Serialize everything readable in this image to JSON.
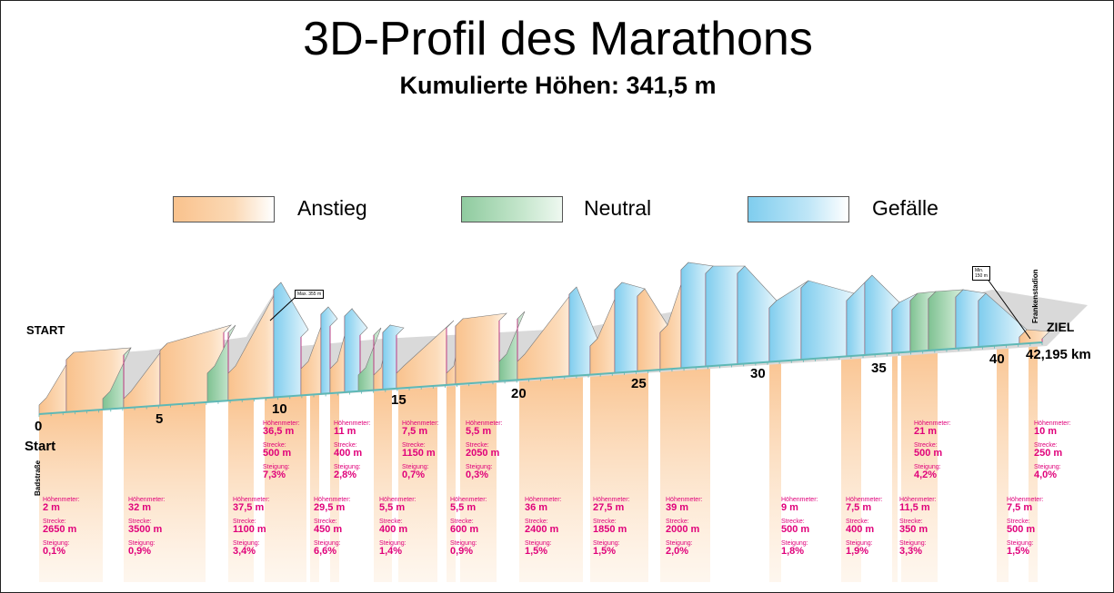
{
  "title": "3D-Profil des Marathons",
  "subtitle": "Kumulierte Höhen: 341,5 m",
  "legend": [
    {
      "label": "Anstieg",
      "color": "#f9c28d"
    },
    {
      "label": "Neutral",
      "color": "#8fcb9f"
    },
    {
      "label": "Gefälle",
      "color": "#7fcdee"
    }
  ],
  "labels": {
    "start_side": "START",
    "ziel_side": "ZIEL",
    "start_km": "0",
    "start_word": "Start",
    "badstrasse": "Badstraße",
    "frankenstadion": "Frankenstadion",
    "max": "Max. 355 m",
    "min": "Min. 150 m",
    "km_end": "42,195 km"
  },
  "keys": {
    "hm": "Höhenmeter:",
    "strecke": "Strecke:",
    "steigung": "Steigung:"
  },
  "km_marks": [
    "5",
    "10",
    "15",
    "20",
    "25",
    "30",
    "35",
    "40"
  ],
  "upper_stats": [
    {
      "hm": "36,5 m",
      "strecke": "500 m",
      "steigung": "7,3%"
    },
    {
      "hm": "11 m",
      "strecke": "400 m",
      "steigung": "2,8%"
    },
    {
      "hm": "7,5 m",
      "strecke": "1150 m",
      "steigung": "0,7%"
    },
    {
      "hm": "5,5 m",
      "strecke": "2050 m",
      "steigung": "0,3%"
    },
    {
      "hm": "21 m",
      "strecke": "500 m",
      "steigung": "4,2%"
    },
    {
      "hm": "10 m",
      "strecke": "250 m",
      "steigung": "4,0%"
    }
  ],
  "lower_stats": [
    {
      "hm": "2 m",
      "strecke": "2650 m",
      "steigung": "0,1%"
    },
    {
      "hm": "32 m",
      "strecke": "3500 m",
      "steigung": "0,9%"
    },
    {
      "hm": "37,5 m",
      "strecke": "1100 m",
      "steigung": "3,4%"
    },
    {
      "hm": "29,5 m",
      "strecke": "450 m",
      "steigung": "6,6%"
    },
    {
      "hm": "5,5 m",
      "strecke": "400 m",
      "steigung": "1,4%"
    },
    {
      "hm": "5,5 m",
      "strecke": "600 m",
      "steigung": "0,9%"
    },
    {
      "hm": "36 m",
      "strecke": "2400 m",
      "steigung": "1,5%"
    },
    {
      "hm": "27,5 m",
      "strecke": "1850 m",
      "steigung": "1,5%"
    },
    {
      "hm": "39 m",
      "strecke": "2000 m",
      "steigung": "2,0%"
    },
    {
      "hm": "9 m",
      "strecke": "500 m",
      "steigung": "1,8%"
    },
    {
      "hm": "7,5 m",
      "strecke": "400 m",
      "steigung": "1,9%"
    },
    {
      "hm": "11,5 m",
      "strecke": "350 m",
      "steigung": "3,3%"
    },
    {
      "hm": "7,5 m",
      "strecke": "500 m",
      "steigung": "1,5%"
    }
  ]
}
